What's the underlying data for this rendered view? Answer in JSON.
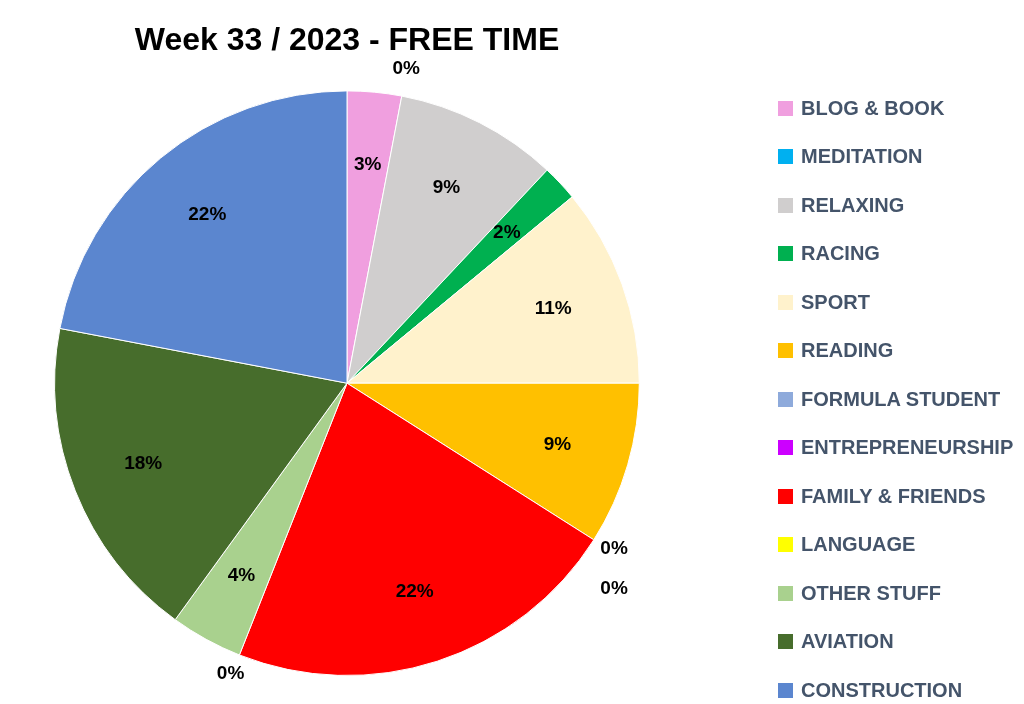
{
  "chart_data": {
    "type": "pie",
    "title": "Week 33 / 2023 - FREE TIME",
    "categories": [
      "BLOG & BOOK",
      "MEDITATION",
      "RELAXING",
      "RACING",
      "SPORT",
      "READING",
      "FORMULA STUDENT",
      "ENTREPRENEURSHIP",
      "FAMILY & FRIENDS",
      "LANGUAGE",
      "OTHER STUFF",
      "AVIATION",
      "CONSTRUCTION"
    ],
    "values": [
      3,
      0,
      9,
      2,
      11,
      9,
      0,
      0,
      22,
      0,
      4,
      18,
      22
    ],
    "value_labels": [
      "3%",
      "0%",
      "9%",
      "2%",
      "11%",
      "9%",
      "0%",
      "0%",
      "22%",
      "0%",
      "4%",
      "18%",
      "22%"
    ],
    "colors": [
      "#f09fdf",
      "#00b0f0",
      "#d0cece",
      "#00b050",
      "#fff2cc",
      "#ffc000",
      "#8eaadb",
      "#cc00ff",
      "#ff0000",
      "#ffff00",
      "#a9d18e",
      "#476d2c",
      "#5b86cf"
    ],
    "legend": "right"
  }
}
